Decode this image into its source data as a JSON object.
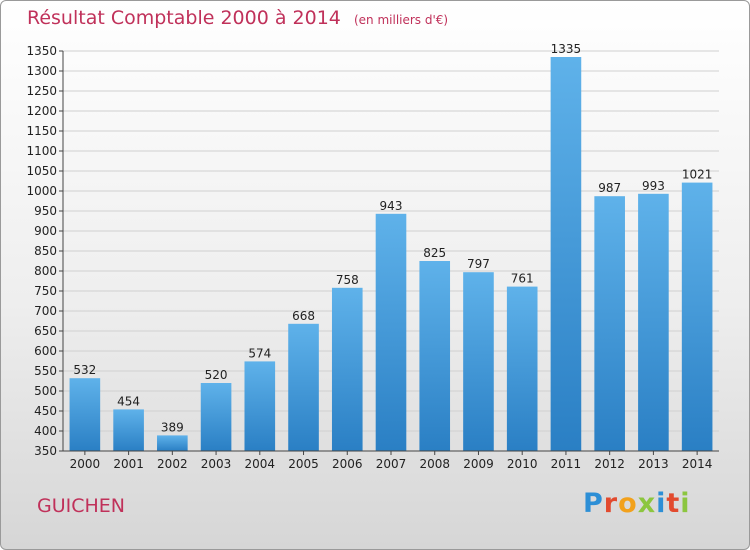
{
  "title": "Résultat Comptable 2000 à 2014",
  "subtitle": "(en milliers d'€)",
  "commune": "GUICHEN",
  "brand": {
    "letters": [
      "P",
      "r",
      "o",
      "x",
      "i",
      "t",
      "i"
    ],
    "colors": [
      "#2d8fd6",
      "#e24a2e",
      "#f2a11c",
      "#8cc63f",
      "#2d8fd6",
      "#e24a2e",
      "#8cc63f"
    ]
  },
  "colors": {
    "title": "#c0315a",
    "bar_top": "#5fb2ea",
    "bar_bottom": "#2a7fc4",
    "grid": "#d0d0d0"
  },
  "chart_data": {
    "type": "bar",
    "categories": [
      "2000",
      "2001",
      "2002",
      "2003",
      "2004",
      "2005",
      "2006",
      "2007",
      "2008",
      "2009",
      "2010",
      "2011",
      "2012",
      "2013",
      "2014"
    ],
    "values": [
      532,
      454,
      389,
      520,
      574,
      668,
      758,
      943,
      825,
      797,
      761,
      1335,
      987,
      993,
      1021
    ],
    "title": "Résultat Comptable 2000 à 2014",
    "xlabel": "",
    "ylabel": "",
    "ylim": [
      350,
      1350
    ],
    "yticks": [
      350,
      400,
      450,
      500,
      550,
      600,
      650,
      700,
      750,
      800,
      850,
      900,
      950,
      1000,
      1050,
      1100,
      1150,
      1200,
      1250,
      1300,
      1350
    ],
    "grid": true,
    "legend": "none"
  }
}
